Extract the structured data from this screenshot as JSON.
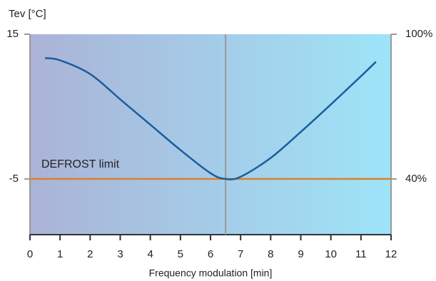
{
  "chart_data": {
    "type": "line",
    "y_label": "Tev [°C]",
    "x_label": "Frequency modulation [min]",
    "x": [
      0.5,
      1,
      2,
      3,
      4,
      5,
      6,
      6.5,
      7,
      8,
      9,
      10,
      11,
      11.5
    ],
    "series": [
      {
        "color": "#1a5d9e",
        "values": [
          11.7,
          11.4,
          9.5,
          6,
          2.5,
          -1,
          -4.2,
          -5,
          -4.7,
          -2.1,
          1.5,
          5.3,
          9.2,
          11.2
        ]
      }
    ],
    "xlim": [
      0,
      12
    ],
    "xticks": [
      0,
      1,
      2,
      3,
      4,
      5,
      6,
      7,
      8,
      9,
      10,
      11,
      12
    ],
    "ylim": [
      -12.7,
      15
    ],
    "yticks": [
      15,
      -5
    ],
    "y2lim": [
      16.9,
      100
    ],
    "y2ticks": [
      {
        "value": 100,
        "label": "100%"
      },
      {
        "value": 40,
        "label": "40%"
      }
    ],
    "defrost_limit": {
      "label": "DEFROST limit",
      "value": -5,
      "color": "#d9822b"
    },
    "marker_x": 6.5,
    "background": [
      "#abb3d7",
      "#9ee4f8"
    ]
  }
}
